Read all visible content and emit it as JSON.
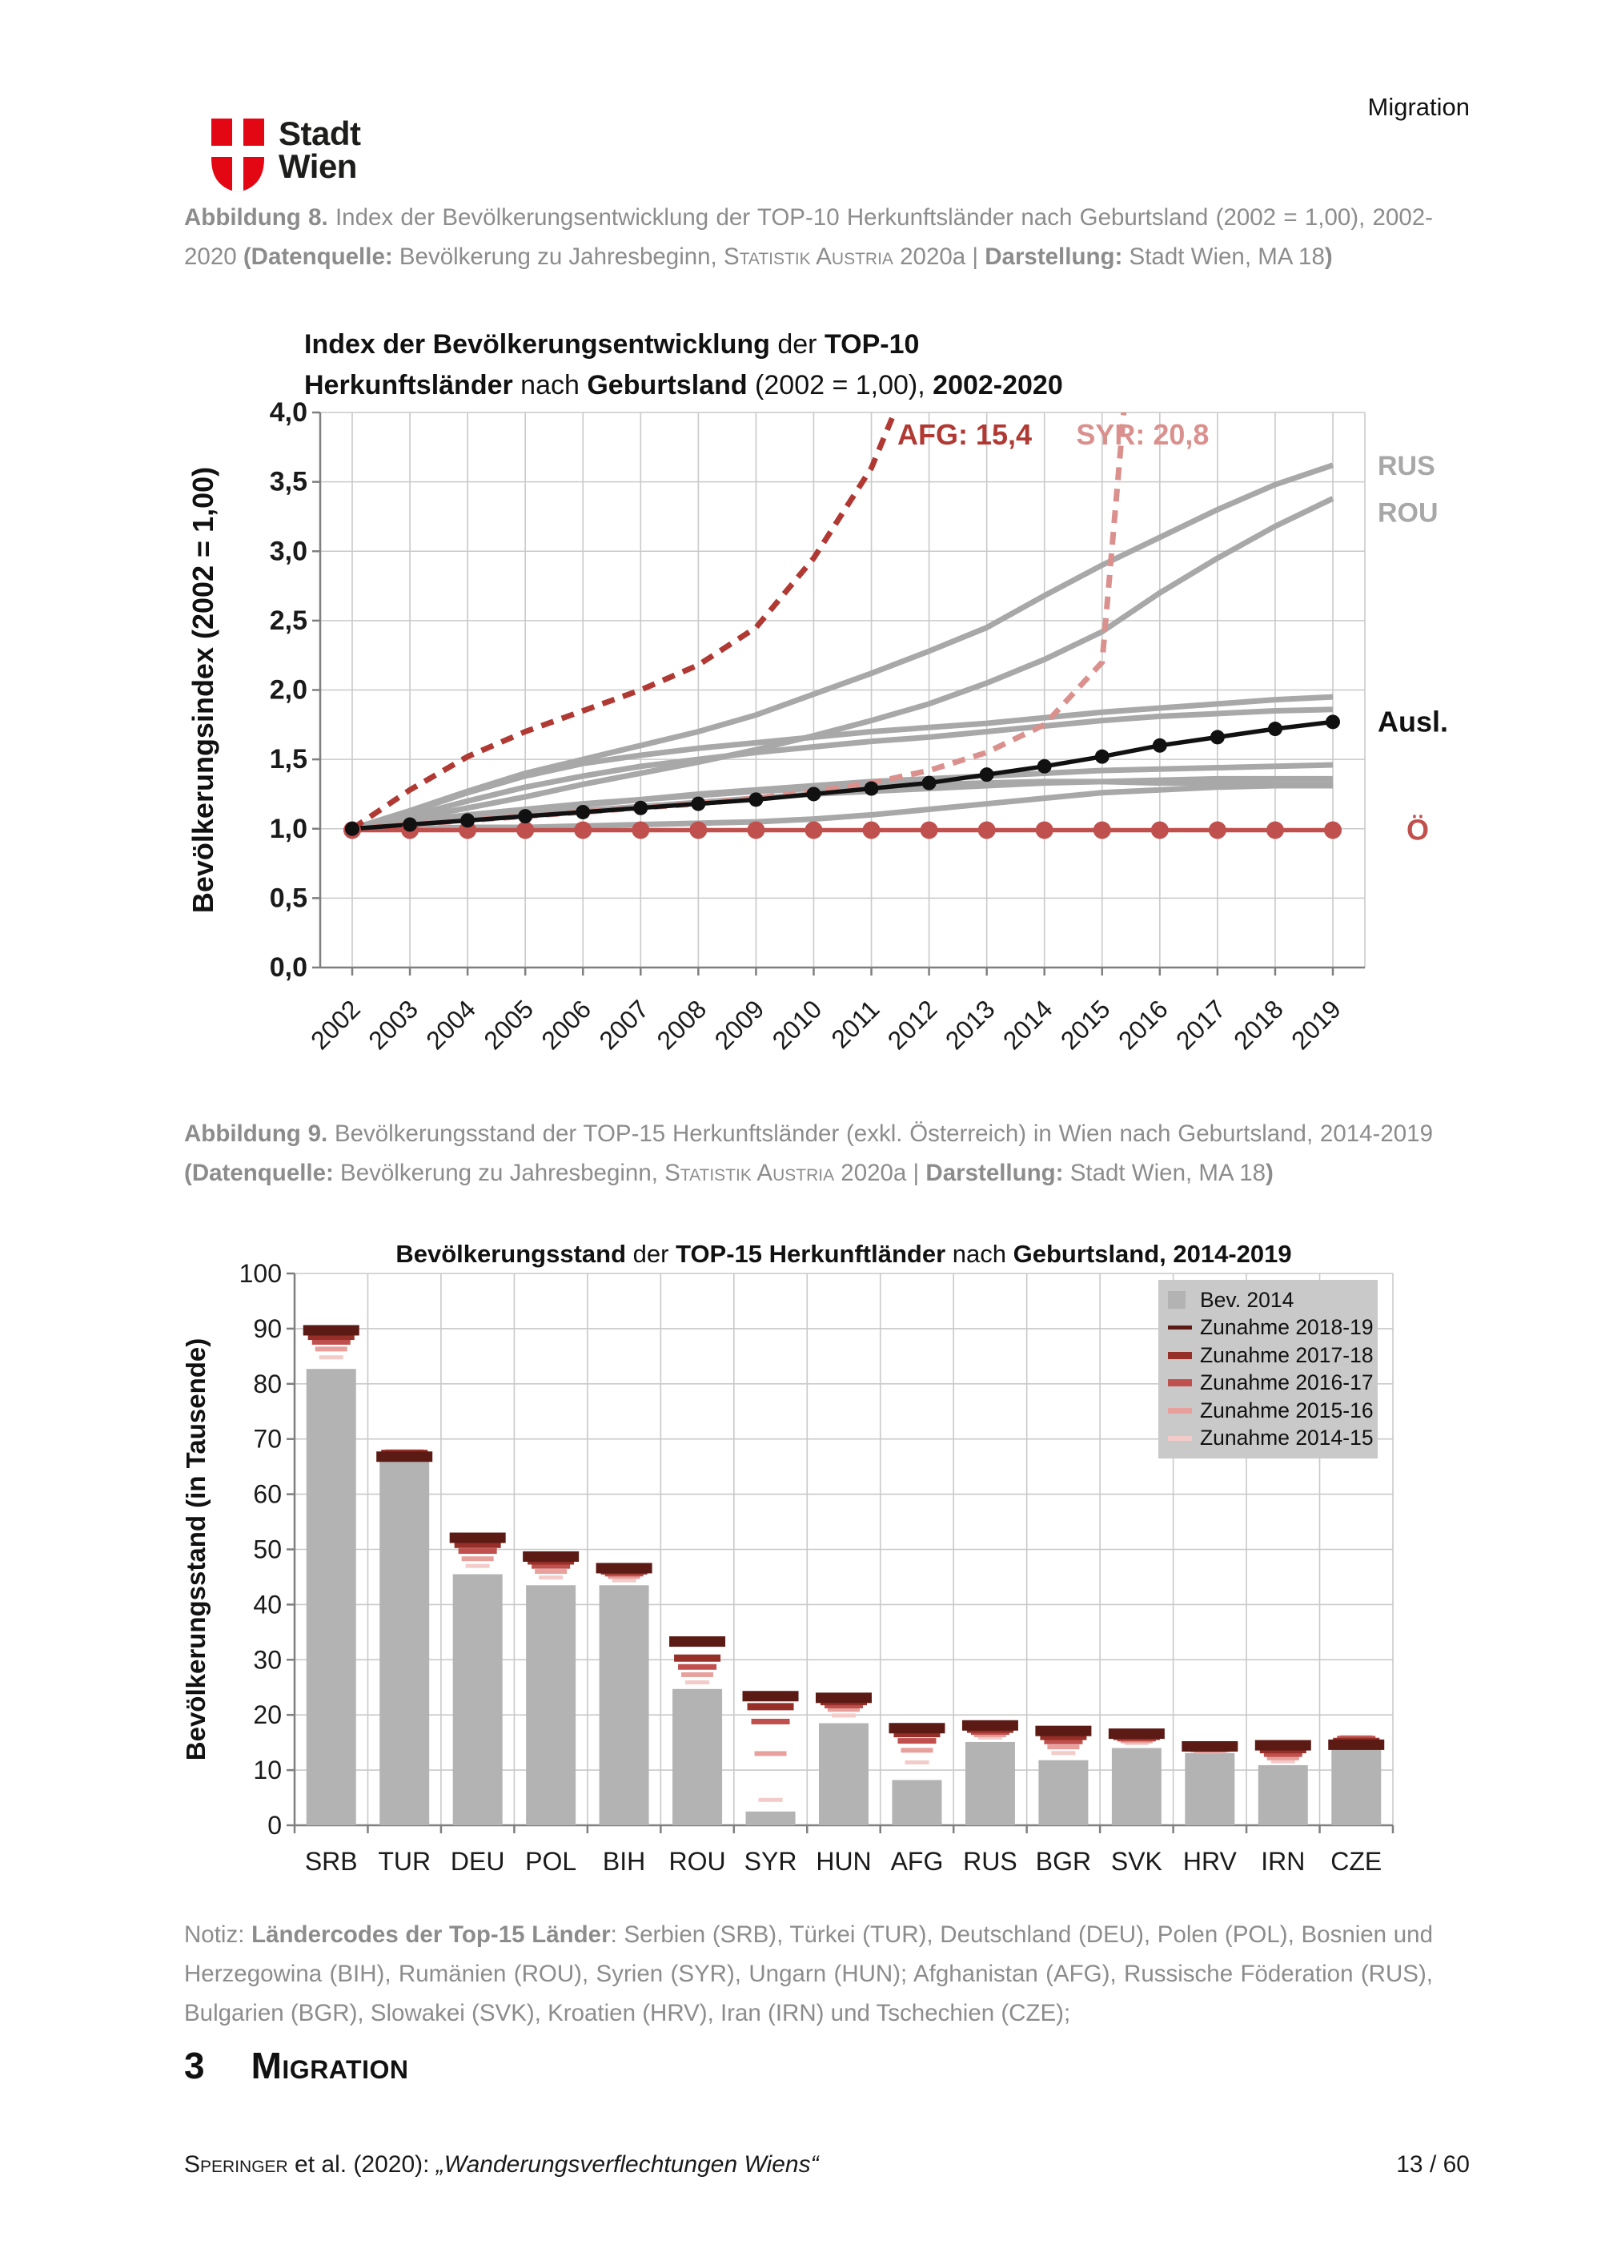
{
  "page": {
    "header_right": "Migration",
    "logo": {
      "line1": "Stadt",
      "line2": "Wien",
      "shield_color": "#e30613"
    }
  },
  "caption8": [
    {
      "t": "Abbildung 8.",
      "b": true
    },
    {
      "t": " Index der Bevölkerungsentwicklung der TOP-10 Herkunftsländer nach Geburtsland (2002 = 1,00), 2002-2020 "
    },
    {
      "t": "(Datenquelle:",
      "b": true
    },
    {
      "t": " Bevölkerung zu Jahresbeginn, "
    },
    {
      "t": "Statistik Austria",
      "sc": true
    },
    {
      "t": " 2020a | "
    },
    {
      "t": "Darstellung:",
      "b": true
    },
    {
      "t": " Stadt Wien, MA 18"
    },
    {
      "t": ")",
      "b": true
    }
  ],
  "caption9": [
    {
      "t": "Abbildung 9.",
      "b": true
    },
    {
      "t": " Bevölkerungsstand der TOP-15 Herkunftsländer (exkl. Österreich) in Wien nach Geburtsland, 2014-2019 "
    },
    {
      "t": "(Datenquelle:",
      "b": true
    },
    {
      "t": " Bevölkerung zu Jahresbeginn, "
    },
    {
      "t": "Statistik Austria",
      "sc": true
    },
    {
      "t": " 2020a | "
    },
    {
      "t": "Darstellung:",
      "b": true
    },
    {
      "t": " Stadt Wien, MA 18"
    },
    {
      "t": ")",
      "b": true
    }
  ],
  "note": [
    {
      "t": "Notiz: "
    },
    {
      "t": "Ländercodes der Top-15 Länder",
      "b": true
    },
    {
      "t": ": Serbien (SRB), Türkei (TUR), Deutschland (DEU), Polen (POL), Bosnien und Herzegowina (BIH), Rumänien (ROU), Syrien (SYR), Ungarn (HUN); Afghanistan (AFG), Russische Föderation (RUS), Bulgarien (BGR), Slowakei (SVK), Kroatien (HRV), Iran (IRN) und Tschechien (CZE);"
    }
  ],
  "chart1": {
    "title_line1": [
      {
        "t": "Index der Bevölkerungsentwicklung",
        "b": true
      },
      {
        "t": " der "
      },
      {
        "t": "TOP-10",
        "b": true
      }
    ],
    "title_line2": [
      {
        "t": "Herkunftsländer",
        "b": true
      },
      {
        "t": " nach "
      },
      {
        "t": "Geburtsland",
        "b": true
      },
      {
        "t": " (2002 = 1,00), "
      },
      {
        "t": "2002-2020",
        "b": true
      }
    ]
  },
  "chart2": {
    "title_segments": [
      {
        "t": "Bevölkerungsstand",
        "b": true
      },
      {
        "t": " der "
      },
      {
        "t": "TOP-15 Herkunftländer",
        "b": true
      },
      {
        "t": " nach "
      },
      {
        "t": "Geburtsland, 2014-2019",
        "b": true
      }
    ]
  },
  "section": {
    "number": "3",
    "title": "Migration"
  },
  "footer": {
    "left": [
      {
        "t": "Speringer",
        "sc": true
      },
      {
        "t": " et al. (2020): "
      },
      {
        "t": "„Wanderungsverflechtungen Wiens“",
        "i": true
      }
    ],
    "page": "13 / 60"
  },
  "chart_data": [
    {
      "type": "line",
      "title": "Index der Bevölkerungsentwicklung der TOP-10 Herkunftsländer nach Geburtsland (2002 = 1,00), 2002-2020",
      "ylabel": "Bevölkerungsindex (2002 = 1,00)",
      "ylim": [
        0.0,
        4.0
      ],
      "yticks": [
        "4,0",
        "3,5",
        "3,0",
        "2,5",
        "2,0",
        "1,5",
        "1,0",
        "0,5",
        "0,0"
      ],
      "x": [
        2002,
        2003,
        2004,
        2005,
        2006,
        2007,
        2008,
        2009,
        2010,
        2011,
        2012,
        2013,
        2014,
        2015,
        2016,
        2017,
        2018,
        2019
      ],
      "grid": true,
      "series": [
        {
          "name": "unlabeled-1",
          "color": "#a8a8a8",
          "values": [
            1.0,
            1.12,
            1.26,
            1.38,
            1.47,
            1.53,
            1.58,
            1.62,
            1.66,
            1.7,
            1.73,
            1.76,
            1.8,
            1.84,
            1.87,
            1.9,
            1.93,
            1.95
          ]
        },
        {
          "name": "unlabeled-2",
          "color": "#a8a8a8",
          "values": [
            1.0,
            1.09,
            1.2,
            1.3,
            1.38,
            1.45,
            1.5,
            1.55,
            1.59,
            1.63,
            1.66,
            1.7,
            1.74,
            1.78,
            1.81,
            1.83,
            1.85,
            1.86
          ]
        },
        {
          "name": "unlabeled-3",
          "color": "#a8a8a8",
          "values": [
            1.0,
            1.04,
            1.09,
            1.13,
            1.17,
            1.21,
            1.25,
            1.28,
            1.31,
            1.34,
            1.36,
            1.38,
            1.4,
            1.42,
            1.43,
            1.44,
            1.45,
            1.46
          ]
        },
        {
          "name": "unlabeled-4",
          "color": "#a8a8a8",
          "values": [
            1.0,
            1.03,
            1.07,
            1.1,
            1.13,
            1.16,
            1.19,
            1.22,
            1.25,
            1.27,
            1.29,
            1.31,
            1.33,
            1.34,
            1.35,
            1.36,
            1.36,
            1.36
          ]
        },
        {
          "name": "unlabeled-5",
          "color": "#a8a8a8",
          "values": [
            1.0,
            1.05,
            1.1,
            1.14,
            1.18,
            1.21,
            1.24,
            1.27,
            1.29,
            1.31,
            1.32,
            1.33,
            1.34,
            1.34,
            1.33,
            1.33,
            1.32,
            1.32
          ]
        },
        {
          "name": "unlabeled-6",
          "color": "#a8a8a8",
          "values": [
            1.0,
            1.0,
            1.01,
            1.01,
            1.02,
            1.03,
            1.04,
            1.05,
            1.07,
            1.1,
            1.14,
            1.18,
            1.22,
            1.26,
            1.28,
            1.3,
            1.31,
            1.31
          ]
        },
        {
          "name": "RUS",
          "color": "#a8a8a8",
          "values": [
            1.0,
            1.13,
            1.27,
            1.4,
            1.5,
            1.6,
            1.7,
            1.82,
            1.97,
            2.12,
            2.28,
            2.45,
            2.68,
            2.9,
            3.1,
            3.3,
            3.48,
            3.62
          ]
        },
        {
          "name": "ROU",
          "color": "#a8a8a8",
          "values": [
            1.0,
            1.07,
            1.15,
            1.23,
            1.32,
            1.4,
            1.48,
            1.57,
            1.67,
            1.78,
            1.9,
            2.05,
            2.22,
            2.42,
            2.7,
            2.95,
            3.18,
            3.38
          ]
        },
        {
          "name": "SYR",
          "color": "#da918e",
          "dash": true,
          "final_value": 20.8,
          "values": [
            1.0,
            1.03,
            1.06,
            1.09,
            1.12,
            1.15,
            1.18,
            1.22,
            1.27,
            1.33,
            1.42,
            1.55,
            1.75,
            2.2,
            7.0,
            12.0,
            16.0,
            20.8
          ]
        },
        {
          "name": "AFG",
          "color": "#b03a33",
          "dash": true,
          "final_value": 15.4,
          "values": [
            1.0,
            1.28,
            1.52,
            1.7,
            1.85,
            2.0,
            2.18,
            2.45,
            2.95,
            3.6,
            4.6,
            6.0,
            7.5,
            9.0,
            10.8,
            12.4,
            14.0,
            15.4
          ]
        },
        {
          "name": "Ö",
          "color": "#c0504d",
          "markers": true,
          "r": 11,
          "values": [
            0.99,
            0.99,
            0.99,
            0.99,
            0.99,
            0.99,
            0.99,
            0.99,
            0.99,
            0.99,
            0.99,
            0.99,
            0.99,
            0.99,
            0.99,
            0.99,
            0.99,
            0.99
          ]
        },
        {
          "name": "Ausl.",
          "color": "#111111",
          "markers": true,
          "r": 9,
          "values": [
            1.0,
            1.03,
            1.06,
            1.09,
            1.12,
            1.15,
            1.18,
            1.21,
            1.25,
            1.29,
            1.33,
            1.39,
            1.45,
            1.52,
            1.6,
            1.66,
            1.72,
            1.77
          ]
        }
      ],
      "annotations": [
        {
          "text": "AFG: 15,4",
          "xi": 9.45,
          "yv": 3.77,
          "color": "#b03a33"
        },
        {
          "text": "SYR: 20,8",
          "xi": 12.55,
          "yv": 3.77,
          "color": "#da918e"
        }
      ],
      "right_labels": [
        {
          "text": "RUS",
          "at": 3.62,
          "color": "#a8a8a8",
          "big": false
        },
        {
          "text": "ROU",
          "at": 3.28,
          "color": "#a8a8a8",
          "big": false
        },
        {
          "text": "Ausl.",
          "at": 1.77,
          "color": "#111111",
          "big": true
        },
        {
          "text": "Ö",
          "at": 0.99,
          "color": "#c0504d",
          "big": true,
          "offset": 36
        }
      ]
    },
    {
      "type": "bar",
      "title": "Bevölkerungsstand der TOP-15 Herkunftländer nach Geburtsland, 2014-2019",
      "ylabel": "Bevölkerungsstand (in Tausende)",
      "ylim": [
        0,
        100
      ],
      "yticks": [
        0,
        10,
        20,
        30,
        40,
        50,
        60,
        70,
        80,
        90,
        100
      ],
      "grid": true,
      "bar_color": "#b3b3b3",
      "increment_keys": [
        "2014-15",
        "2015-16",
        "2016-17",
        "2017-18",
        "2018-19"
      ],
      "level_colors": [
        "#f3cbc9",
        "#e7a09c",
        "#c0504d",
        "#952f27",
        "#5c1a15"
      ],
      "items": [
        {
          "code": "SRB",
          "bev2014": 82.7,
          "levels": [
            84.8,
            86.3,
            87.6,
            88.6,
            89.7
          ]
        },
        {
          "code": "TUR",
          "bev2014": 67.2,
          "levels": [
            67.4,
            67.6,
            67.6,
            67.4,
            66.8
          ]
        },
        {
          "code": "DEU",
          "bev2014": 45.5,
          "levels": [
            47.0,
            48.3,
            49.7,
            50.9,
            52.1
          ]
        },
        {
          "code": "POL",
          "bev2014": 43.5,
          "levels": [
            44.9,
            46.0,
            47.0,
            47.9,
            48.7
          ]
        },
        {
          "code": "BIH",
          "bev2014": 43.5,
          "levels": [
            44.4,
            45.1,
            45.6,
            46.1,
            46.6
          ]
        },
        {
          "code": "ROU",
          "bev2014": 24.7,
          "levels": [
            25.9,
            27.3,
            28.7,
            30.3,
            33.3
          ]
        },
        {
          "code": "SYR",
          "bev2014": 2.5,
          "levels": [
            4.6,
            13.0,
            18.8,
            21.5,
            23.4
          ]
        },
        {
          "code": "HUN",
          "bev2014": 18.5,
          "levels": [
            19.9,
            21.0,
            21.7,
            22.4,
            23.1
          ]
        },
        {
          "code": "AFG",
          "bev2014": 8.2,
          "levels": [
            11.4,
            13.6,
            15.3,
            16.6,
            17.6
          ]
        },
        {
          "code": "RUS",
          "bev2014": 15.1,
          "levels": [
            15.9,
            16.4,
            16.9,
            17.4,
            18.1
          ]
        },
        {
          "code": "BGR",
          "bev2014": 11.8,
          "levels": [
            13.1,
            14.2,
            15.2,
            16.1,
            17.1
          ]
        },
        {
          "code": "SVK",
          "bev2014": 14.0,
          "levels": [
            14.9,
            15.3,
            15.7,
            16.1,
            16.6
          ]
        },
        {
          "code": "HRV",
          "bev2014": 13.1,
          "levels": [
            13.4,
            13.6,
            13.8,
            14.0,
            14.3
          ]
        },
        {
          "code": "IRN",
          "bev2014": 10.9,
          "levels": [
            11.6,
            12.2,
            12.9,
            13.7,
            14.5
          ]
        },
        {
          "code": "CZE",
          "bev2014": 15.5,
          "levels": [
            15.8,
            15.9,
            15.7,
            15.2,
            14.6
          ]
        }
      ],
      "legend": [
        {
          "label": "Bev. 2014",
          "type": "square",
          "color": "#b3b3b3"
        },
        {
          "label": "Zunahme 2018-19",
          "type": "dash",
          "color": "#5c1a15"
        },
        {
          "label": "Zunahme 2017-18",
          "type": "dash",
          "color": "#952f27"
        },
        {
          "label": "Zunahme 2016-17",
          "type": "dash",
          "color": "#c0504d"
        },
        {
          "label": "Zunahme 2015-16",
          "type": "dash",
          "color": "#e7a09c"
        },
        {
          "label": "Zunahme 2014-15",
          "type": "dash",
          "color": "#f3cbc9"
        }
      ],
      "legend_position": "top-right"
    }
  ]
}
